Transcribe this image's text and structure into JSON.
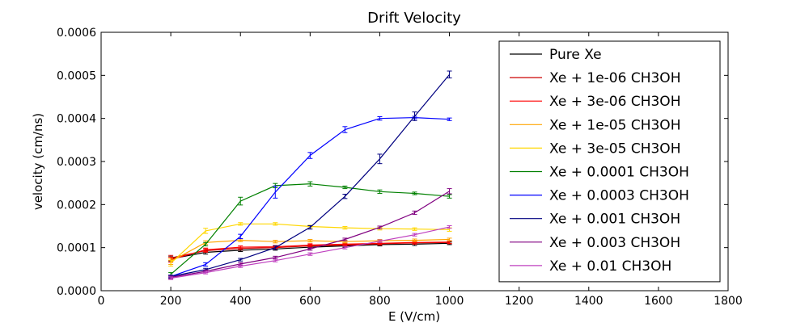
{
  "chart_data": {
    "type": "line",
    "title": "Drift Velocity",
    "xlabel": "E (V/cm)",
    "ylabel": "velocity (cm/ns)",
    "xlim": [
      0,
      1800
    ],
    "ylim": [
      0,
      0.0006
    ],
    "x_ticks": [
      "0",
      "200",
      "400",
      "600",
      "800",
      "1000",
      "1200",
      "1400",
      "1600",
      "1800"
    ],
    "y_ticks": [
      "0.0000",
      "0.0001",
      "0.0002",
      "0.0003",
      "0.0004",
      "0.0005",
      "0.0006"
    ],
    "grid": false,
    "legend_position": "top-right",
    "x": [
      200,
      300,
      400,
      500,
      600,
      700,
      800,
      900,
      1000
    ],
    "series": [
      {
        "name": "Pure Xe",
        "color": "#000000",
        "values": [
          7.4e-05,
          8.9e-05,
          9.4e-05,
          9.7e-05,
          0.000101,
          0.000104,
          0.000107,
          0.000108,
          0.00011
        ],
        "errors": [
          5e-06,
          4e-06,
          3e-06,
          3e-06,
          3e-06,
          3e-06,
          3e-06,
          3e-06,
          3e-06
        ]
      },
      {
        "name": "Xe + 1e-06 CH3OH",
        "color": "#cc0000",
        "values": [
          7.6e-05,
          9.3e-05,
          9.8e-05,
          0.0001,
          0.000104,
          0.000106,
          0.000109,
          0.000111,
          0.000112
        ],
        "errors": [
          6e-06,
          4e-06,
          3e-06,
          3e-06,
          3e-06,
          3e-06,
          3e-06,
          3e-06,
          3e-06
        ]
      },
      {
        "name": "Xe + 3e-06 CH3OH",
        "color": "#ff0000",
        "values": [
          7.2e-05,
          9.5e-05,
          0.000101,
          0.000102,
          0.000106,
          0.000108,
          0.00011,
          0.000112,
          0.000113
        ],
        "errors": [
          6e-06,
          4e-06,
          3e-06,
          3e-06,
          3e-06,
          3e-06,
          3e-06,
          3e-06,
          3e-06
        ]
      },
      {
        "name": "Xe + 1e-05 CH3OH",
        "color": "#ffa500",
        "values": [
          6.8e-05,
          0.000112,
          0.000117,
          0.000114,
          0.000116,
          0.000114,
          0.000116,
          0.000117,
          0.000119
        ],
        "errors": [
          7e-06,
          4e-06,
          3e-06,
          3e-06,
          3e-06,
          3e-06,
          3e-06,
          3e-06,
          3e-06
        ]
      },
      {
        "name": "Xe + 3e-05 CH3OH",
        "color": "#ffd700",
        "values": [
          6.4e-05,
          0.000139,
          0.000155,
          0.000155,
          0.000149,
          0.000146,
          0.000144,
          0.000143,
          0.000142
        ],
        "errors": [
          7e-06,
          6e-06,
          3e-06,
          3e-06,
          3e-06,
          3e-06,
          3e-06,
          3e-06,
          4e-06
        ]
      },
      {
        "name": "Xe + 0.0001 CH3OH",
        "color": "#008000",
        "values": [
          3.8e-05,
          0.000108,
          0.000208,
          0.000244,
          0.000248,
          0.00024,
          0.00023,
          0.000226,
          0.000219
        ],
        "errors": [
          4e-06,
          4e-06,
          9e-06,
          5e-06,
          5e-06,
          3e-06,
          4e-06,
          3e-06,
          4e-06
        ]
      },
      {
        "name": "Xe + 0.0003 CH3OH",
        "color": "#0000ff",
        "values": [
          3.3e-05,
          6.1e-05,
          0.000126,
          0.000229,
          0.000314,
          0.000374,
          0.0004,
          0.000402,
          0.000398
        ],
        "errors": [
          3e-06,
          4e-06,
          5e-06,
          1.4e-05,
          7e-06,
          7e-06,
          4e-06,
          3e-06,
          3e-06
        ]
      },
      {
        "name": "Xe + 0.001 CH3OH",
        "color": "#000080",
        "values": [
          3.3e-05,
          4.9e-05,
          7.2e-05,
          0.0001,
          0.000147,
          0.000219,
          0.000306,
          0.000405,
          0.000502
        ],
        "errors": [
          3e-06,
          3e-06,
          3e-06,
          4e-06,
          4e-06,
          5e-06,
          1.1e-05,
          1e-05,
          8e-06
        ]
      },
      {
        "name": "Xe + 0.003 CH3OH",
        "color": "#800080",
        "values": [
          3.1e-05,
          4.5e-05,
          6.2e-05,
          7.7e-05,
          9.7e-05,
          0.000119,
          0.000147,
          0.000181,
          0.000231
        ],
        "errors": [
          3e-06,
          3e-06,
          3e-06,
          3e-06,
          3e-06,
          3e-06,
          3e-06,
          4e-06,
          6e-06
        ]
      },
      {
        "name": "Xe + 0.01 CH3OH",
        "color": "#bf40bf",
        "values": [
          2.9e-05,
          4.2e-05,
          5.7e-05,
          7e-05,
          8.5e-05,
          0.0001,
          0.000115,
          0.00013,
          0.000148
        ],
        "errors": [
          3e-06,
          3e-06,
          3e-06,
          3e-06,
          3e-06,
          3e-06,
          3e-06,
          3e-06,
          3e-06
        ]
      }
    ]
  }
}
